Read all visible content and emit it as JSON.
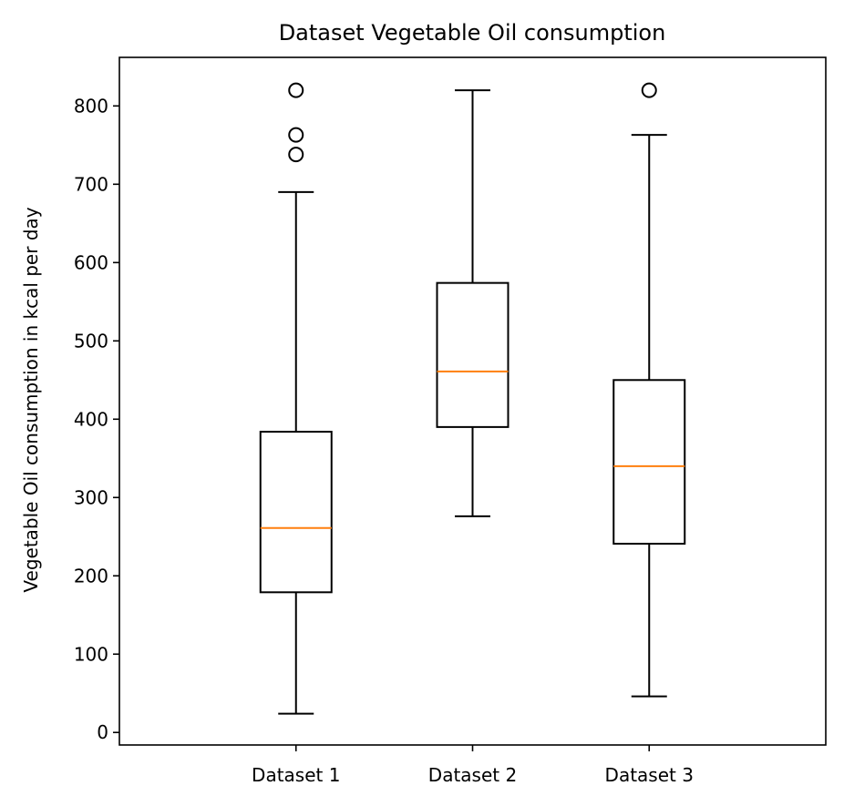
{
  "chart_data": {
    "type": "box",
    "title": "Dataset Vegetable Oil consumption",
    "xlabel": "",
    "ylabel": "Vegetable Oil consumption in kcal per day",
    "categories": [
      "Dataset 1",
      "Dataset 2",
      "Dataset 3"
    ],
    "ylim": [
      -16,
      862
    ],
    "yticks": [
      0,
      100,
      200,
      300,
      400,
      500,
      600,
      700,
      800
    ],
    "grid": false,
    "boxes": [
      {
        "label": "Dataset 1",
        "whisker_low": 24,
        "q1": 179,
        "median": 261,
        "q3": 384,
        "whisker_high": 690,
        "outliers": [
          738,
          763,
          820
        ]
      },
      {
        "label": "Dataset 2",
        "whisker_low": 276,
        "q1": 390,
        "median": 461,
        "q3": 574,
        "whisker_high": 820,
        "outliers": []
      },
      {
        "label": "Dataset 3",
        "whisker_low": 46,
        "q1": 241,
        "median": 340,
        "q3": 450,
        "whisker_high": 763,
        "outliers": [
          820
        ]
      }
    ],
    "colors": {
      "box": "#000000",
      "median": "#ff7f0e",
      "outlier_edge": "#000000"
    }
  }
}
